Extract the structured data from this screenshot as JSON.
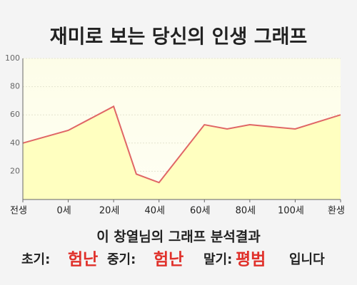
{
  "chart_data": {
    "type": "line",
    "title": "재미로 보는 당신의 인생 그래프",
    "x": [
      -20,
      0,
      20,
      30,
      40,
      60,
      70,
      80,
      100,
      120
    ],
    "values": [
      40,
      49,
      66,
      18,
      12,
      53,
      50,
      53,
      50,
      60
    ],
    "color": "#e06666",
    "fill": "#ffffc0",
    "xlim": [
      -20,
      120
    ],
    "xticks": [
      {
        "value": -20,
        "label": "전생"
      },
      {
        "value": 0,
        "label": "0세"
      },
      {
        "value": 20,
        "label": "20세"
      },
      {
        "value": 40,
        "label": "40세"
      },
      {
        "value": 60,
        "label": "60세"
      },
      {
        "value": 80,
        "label": "80세"
      },
      {
        "value": 100,
        "label": "100세"
      },
      {
        "value": 120,
        "label": "환생"
      }
    ],
    "ylim": [
      0,
      100
    ],
    "yticks": [
      20,
      40,
      60,
      80,
      100
    ],
    "grid": true
  },
  "summary": {
    "heading": "이 창열님의 그래프 분석결과",
    "items": [
      {
        "text": "초기:"
      },
      {
        "text": "험난",
        "color": "#e0302a"
      },
      {
        "text": "중기:"
      },
      {
        "text": "험난",
        "color": "#e0302a"
      },
      {
        "text": "말기:"
      },
      {
        "text": "평범",
        "color": "#e0302a"
      },
      {
        "text": "입니다"
      }
    ]
  }
}
